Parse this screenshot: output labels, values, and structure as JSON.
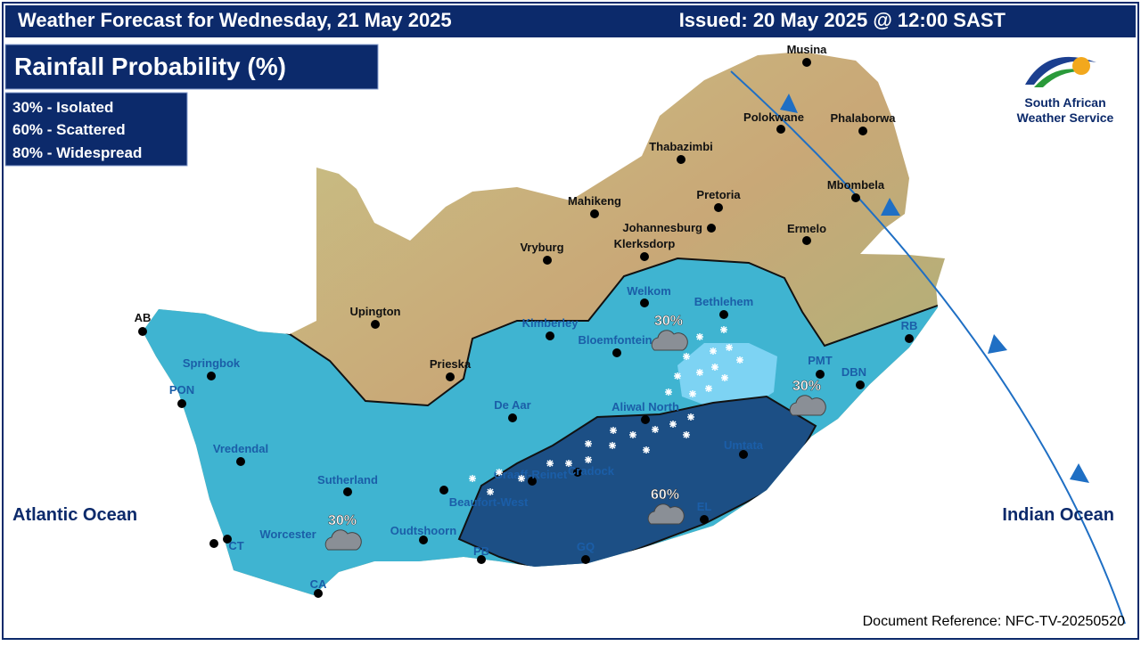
{
  "header": {
    "title": "Weather Forecast for Wednesday, 21 May 2025",
    "issued": "Issued: 20 May 2025 @ 12:00 SAST"
  },
  "panel": {
    "title": "Rainfall Probability (%)",
    "legend": [
      "30% - Isolated",
      "60% - Scattered",
      "80% - Widespread"
    ]
  },
  "logo": {
    "line1": "South African",
    "line2": "Weather Service"
  },
  "oceans": [
    "Atlantic Ocean",
    "Indian Ocean"
  ],
  "probabilities": [
    "30%",
    "30%",
    "30%",
    "60%"
  ],
  "towns": [
    "Musina",
    "Polokwane",
    "Phalaborwa",
    "Thabazimbi",
    "Mbombela",
    "Mahikeng",
    "Pretoria",
    "Johannesburg",
    "Ermelo",
    "Klerksdorp",
    "Vryburg",
    "Welkom",
    "Bethlehem",
    "Upington",
    "Kimberley",
    "Bloemfontein",
    "RB",
    "AB",
    "Springbok",
    "Prieska",
    "PMT",
    "DBN",
    "PON",
    "De Aar",
    "Aliwal North",
    "Vredendal",
    "Umtata",
    "Graaff-Reinet",
    "Cradock",
    "Sutherland",
    "Beaufort-West",
    "EL",
    "Worcester",
    "Oudtshoorn",
    "CT",
    "PB",
    "GQ",
    "CA"
  ],
  "footer": "Document Reference: NFC-TV-20250520"
}
